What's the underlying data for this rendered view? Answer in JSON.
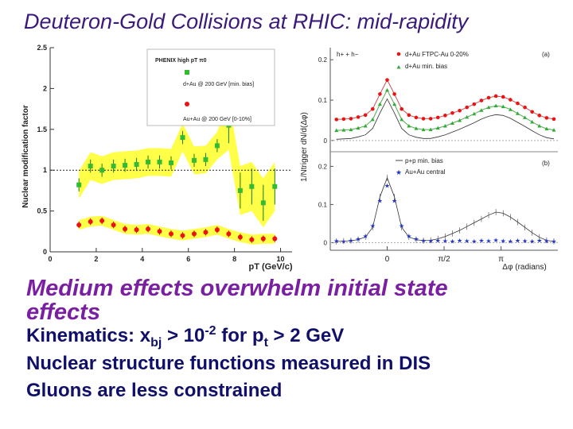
{
  "slide": {
    "title": "Deuteron-Gold Collisions at RHIC: mid-rapidity",
    "subtitle": "Medium effects overwhelm initial state effects",
    "line1": {
      "a": "Kinematics: x",
      "sub1": "bj",
      "b": " >  10",
      "sup": "-2",
      "c": " for p",
      "sub2": "t",
      "d": " > 2 GeV"
    },
    "line2": "Nuclear structure functions measured in DIS",
    "line3": "Gluons are less constrained"
  },
  "colors": {
    "title": "#3b1a7a",
    "subtitle": "#7a1fa2",
    "body": "#10106a",
    "band": "#ffff33",
    "green": "#33bb33",
    "red": "#ee1111",
    "blue": "#2233cc"
  },
  "chart_data": [
    {
      "type": "scatter",
      "ylabel": "Nuclear modification factor",
      "xlabel": "pT (GeV/c)",
      "xlim": [
        0,
        10.5
      ],
      "ylim": [
        0,
        2.5
      ],
      "xticks": [
        "0",
        "2",
        "4",
        "6",
        "8",
        "10"
      ],
      "yticks": [
        "0",
        "0.5",
        "1",
        "1.5",
        "2",
        "2.5"
      ],
      "legend": {
        "header": "PHENIX high pT π0",
        "dau": "d+Au @ 200 GeV [min. bias]",
        "auau": "Au+Au @ 200 GeV [0-10%]"
      },
      "series": [
        {
          "name": "d+Au min bias",
          "x": [
            1.25,
            1.75,
            2.25,
            2.75,
            3.25,
            3.75,
            4.25,
            4.75,
            5.25,
            5.75,
            6.25,
            6.75,
            7.25,
            7.75,
            8.25,
            8.75,
            9.25,
            9.75
          ],
          "y": [
            0.82,
            1.05,
            1.0,
            1.05,
            1.06,
            1.07,
            1.1,
            1.1,
            1.09,
            1.4,
            1.12,
            1.13,
            1.3,
            1.55,
            0.75,
            0.8,
            0.6,
            0.8
          ]
        },
        {
          "name": "Au+Au 0-10%",
          "x": [
            1.25,
            1.75,
            2.25,
            2.75,
            3.25,
            3.75,
            4.25,
            4.75,
            5.25,
            5.75,
            6.25,
            6.75,
            7.25,
            7.75,
            8.25,
            8.75,
            9.25,
            9.75
          ],
          "y": [
            0.33,
            0.37,
            0.38,
            0.33,
            0.28,
            0.27,
            0.28,
            0.25,
            0.22,
            0.2,
            0.22,
            0.24,
            0.27,
            0.22,
            0.18,
            0.15,
            0.16,
            0.16
          ]
        }
      ]
    },
    {
      "type": "line",
      "ylabel": "1/Ntrigger dN/d(Δφ)",
      "xlabel": "Δφ (radians)",
      "xlim": [
        -1.57,
        4.71
      ],
      "xticks": [
        "0",
        "π/2",
        "π"
      ],
      "panels": [
        {
          "label": "(a)",
          "ylim": [
            -0.02,
            0.23
          ],
          "yticks": [
            "0",
            "0.1",
            "0.2"
          ],
          "legend": [
            "h+ + h−",
            "d+Au FTPC-Au 0-20%",
            "d+Au min. bias"
          ],
          "x": [
            -1.4,
            -1.2,
            -1.0,
            -0.8,
            -0.6,
            -0.4,
            -0.2,
            0.0,
            0.2,
            0.4,
            0.6,
            0.8,
            1.0,
            1.2,
            1.4,
            1.6,
            1.8,
            2.0,
            2.2,
            2.4,
            2.6,
            2.8,
            3.0,
            3.2,
            3.4,
            3.6,
            3.8,
            4.0,
            4.2,
            4.4,
            4.6
          ],
          "series": [
            {
              "name": "d+Au FTPC-Au 0-20%",
              "values": [
                0.052,
                0.053,
                0.054,
                0.058,
                0.063,
                0.078,
                0.115,
                0.15,
                0.115,
                0.078,
                0.063,
                0.057,
                0.054,
                0.054,
                0.057,
                0.062,
                0.068,
                0.074,
                0.082,
                0.09,
                0.099,
                0.106,
                0.11,
                0.108,
                0.101,
                0.092,
                0.082,
                0.071,
                0.062,
                0.056,
                0.053
              ]
            },
            {
              "name": "d+Au min. bias",
              "values": [
                0.025,
                0.026,
                0.027,
                0.031,
                0.036,
                0.052,
                0.09,
                0.125,
                0.09,
                0.052,
                0.036,
                0.03,
                0.027,
                0.027,
                0.031,
                0.036,
                0.043,
                0.05,
                0.058,
                0.066,
                0.075,
                0.082,
                0.086,
                0.084,
                0.077,
                0.067,
                0.057,
                0.046,
                0.036,
                0.029,
                0.026
              ]
            }
          ]
        },
        {
          "label": "(b)",
          "ylim": [
            -0.02,
            0.23
          ],
          "yticks": [
            "0",
            "0.1",
            "0.2"
          ],
          "legend": [
            "p+p min. bias",
            "Au+Au central"
          ],
          "x": [
            -1.4,
            -1.2,
            -1.0,
            -0.8,
            -0.6,
            -0.4,
            -0.2,
            0.0,
            0.2,
            0.4,
            0.6,
            0.8,
            1.0,
            1.2,
            1.4,
            1.6,
            1.8,
            2.0,
            2.2,
            2.4,
            2.6,
            2.8,
            3.0,
            3.2,
            3.4,
            3.6,
            3.8,
            4.0,
            4.2,
            4.4,
            4.6
          ],
          "series": [
            {
              "name": "p+p min. bias",
              "values": [
                0.003,
                0.004,
                0.005,
                0.008,
                0.015,
                0.04,
                0.12,
                0.17,
                0.12,
                0.04,
                0.015,
                0.008,
                0.005,
                0.006,
                0.01,
                0.016,
                0.024,
                0.032,
                0.042,
                0.052,
                0.062,
                0.072,
                0.08,
                0.077,
                0.067,
                0.054,
                0.04,
                0.026,
                0.014,
                0.006,
                0.003
              ]
            },
            {
              "name": "Au+Au central",
              "values": [
                0.005,
                0.004,
                0.006,
                0.01,
                0.018,
                0.045,
                0.11,
                0.15,
                0.11,
                0.045,
                0.018,
                0.01,
                0.006,
                0.005,
                0.006,
                0.005,
                0.004,
                0.006,
                0.005,
                0.004,
                0.006,
                0.005,
                0.007,
                0.005,
                0.004,
                0.006,
                0.005,
                0.004,
                0.006,
                0.005,
                0.004
              ]
            }
          ]
        }
      ]
    }
  ]
}
